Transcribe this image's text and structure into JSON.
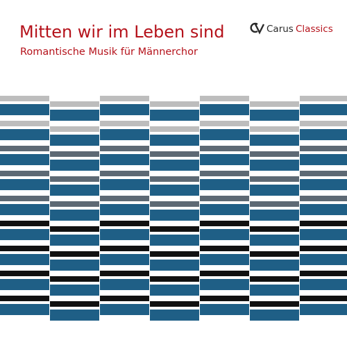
{
  "cover": {
    "title": "Mitten wir im Leben sind",
    "subtitle": "Romantische Musik für Männerchor",
    "logo": {
      "brand": "Carus",
      "series": "Classics"
    }
  }
}
